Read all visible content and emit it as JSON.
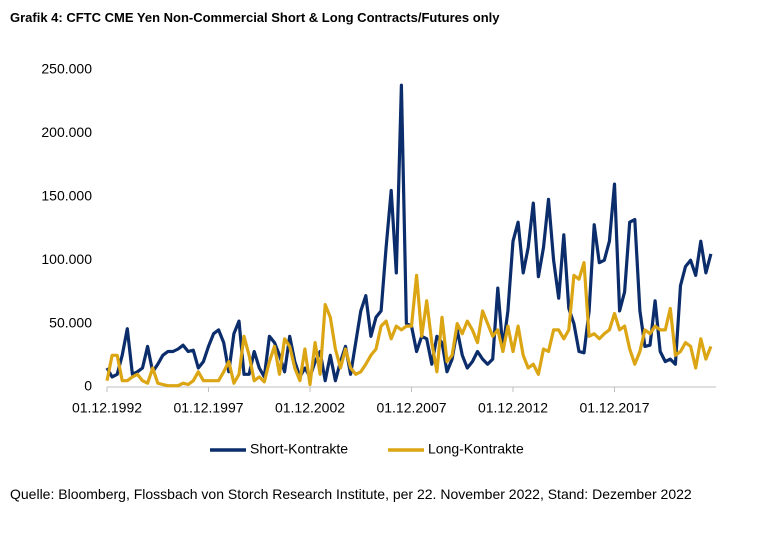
{
  "chart_data": {
    "type": "line",
    "title": "Grafik 4: CFTC CME Yen Non-Commercial Short & Long Contracts/Futures only",
    "source": "Quelle: Bloomberg, Flossbach von Storch Research Institute, per 22. November 2022, Stand: Dezember 2022",
    "x": [
      "01.12.1992",
      "01.03.1993",
      "01.06.1993",
      "01.09.1993",
      "01.12.1993",
      "01.03.1994",
      "01.06.1994",
      "01.09.1994",
      "01.12.1994",
      "01.03.1995",
      "01.06.1995",
      "01.09.1995",
      "01.12.1995",
      "01.03.1996",
      "01.06.1996",
      "01.09.1996",
      "01.12.1996",
      "01.03.1997",
      "01.06.1997",
      "01.09.1997",
      "01.12.1997",
      "01.03.1998",
      "01.06.1998",
      "01.09.1998",
      "01.12.1998",
      "01.03.1999",
      "01.06.1999",
      "01.09.1999",
      "01.12.1999",
      "01.03.2000",
      "01.06.2000",
      "01.09.2000",
      "01.12.2000",
      "01.03.2001",
      "01.06.2001",
      "01.09.2001",
      "01.12.2001",
      "01.03.2002",
      "01.06.2002",
      "01.09.2002",
      "01.12.2002",
      "01.03.2003",
      "01.06.2003",
      "01.09.2003",
      "01.12.2003",
      "01.03.2004",
      "01.06.2004",
      "01.09.2004",
      "01.12.2004",
      "01.03.2005",
      "01.06.2005",
      "01.09.2005",
      "01.12.2005",
      "01.03.2006",
      "01.06.2006",
      "01.09.2006",
      "01.12.2006",
      "01.03.2007",
      "01.06.2007",
      "01.09.2007",
      "01.12.2007",
      "01.03.2008",
      "01.06.2008",
      "01.09.2008",
      "01.12.2008",
      "01.03.2009",
      "01.06.2009",
      "01.09.2009",
      "01.12.2009",
      "01.03.2010",
      "01.06.2010",
      "01.09.2010",
      "01.12.2010",
      "01.03.2011",
      "01.06.2011",
      "01.09.2011",
      "01.12.2011",
      "01.03.2012",
      "01.06.2012",
      "01.09.2012",
      "01.12.2012",
      "01.03.2013",
      "01.06.2013",
      "01.09.2013",
      "01.12.2013",
      "01.03.2014",
      "01.06.2014",
      "01.09.2014",
      "01.12.2014",
      "01.03.2015",
      "01.06.2015",
      "01.09.2015",
      "01.12.2015",
      "01.03.2016",
      "01.06.2016",
      "01.09.2016",
      "01.12.2016",
      "01.03.2017",
      "01.06.2017",
      "01.09.2017",
      "01.12.2017",
      "01.03.2018",
      "01.06.2018",
      "01.09.2018",
      "01.12.2018",
      "01.03.2019",
      "01.06.2019",
      "01.09.2019",
      "01.12.2019",
      "01.03.2020",
      "01.06.2020",
      "01.09.2020",
      "01.12.2020",
      "01.03.2021",
      "01.06.2021",
      "01.09.2021",
      "01.12.2021",
      "01.03.2022",
      "01.06.2022",
      "01.09.2022"
    ],
    "series": [
      {
        "name": "Short-Kontrakte",
        "color": "#0c2d6b",
        "values": [
          15000,
          8000,
          10000,
          25000,
          46000,
          10000,
          12000,
          15000,
          32000,
          12000,
          18000,
          25000,
          28000,
          28000,
          30000,
          33000,
          28000,
          29000,
          15000,
          20000,
          32000,
          42000,
          45000,
          35000,
          12000,
          42000,
          52000,
          10000,
          10000,
          28000,
          15000,
          8000,
          40000,
          35000,
          25000,
          12000,
          40000,
          20000,
          8000,
          15000,
          8000,
          20000,
          28000,
          5000,
          25000,
          5000,
          20000,
          32000,
          10000,
          35000,
          60000,
          72000,
          40000,
          55000,
          60000,
          110000,
          155000,
          90000,
          238000,
          50000,
          48000,
          28000,
          40000,
          38000,
          18000,
          40000,
          35000,
          12000,
          22000,
          45000,
          25000,
          15000,
          20000,
          28000,
          22000,
          18000,
          22000,
          78000,
          30000,
          60000,
          115000,
          130000,
          90000,
          110000,
          145000,
          87000,
          110000,
          148000,
          100000,
          70000,
          120000,
          62000,
          50000,
          28000,
          27000,
          60000,
          128000,
          98000,
          100000,
          115000,
          160000,
          60000,
          75000,
          130000,
          132000,
          60000,
          32000,
          33000,
          68000,
          28000,
          20000,
          22000,
          18000,
          80000,
          95000,
          100000,
          88000,
          115000,
          90000,
          105000
        ]
      },
      {
        "name": "Long-Kontrakte",
        "color": "#dba514",
        "values": [
          5000,
          25000,
          25000,
          5000,
          5000,
          8000,
          10000,
          5000,
          3000,
          15000,
          3000,
          2000,
          1000,
          1000,
          1000,
          3000,
          2000,
          5000,
          12000,
          5000,
          5000,
          5000,
          5000,
          12000,
          20000,
          3000,
          10000,
          40000,
          25000,
          5000,
          8000,
          4000,
          20000,
          32000,
          10000,
          38000,
          32000,
          15000,
          5000,
          30000,
          2000,
          35000,
          10000,
          65000,
          55000,
          30000,
          15000,
          30000,
          15000,
          10000,
          12000,
          18000,
          25000,
          30000,
          48000,
          52000,
          38000,
          48000,
          45000,
          48000,
          48000,
          88000,
          40000,
          68000,
          35000,
          12000,
          55000,
          20000,
          25000,
          50000,
          42000,
          52000,
          45000,
          35000,
          60000,
          50000,
          40000,
          45000,
          28000,
          48000,
          28000,
          48000,
          25000,
          15000,
          18000,
          10000,
          30000,
          28000,
          45000,
          45000,
          38000,
          45000,
          88000,
          85000,
          98000,
          40000,
          42000,
          38000,
          42000,
          45000,
          58000,
          45000,
          48000,
          30000,
          18000,
          28000,
          45000,
          42000,
          48000,
          45000,
          45000,
          62000,
          25000,
          28000,
          35000,
          32000,
          15000,
          38000,
          22000,
          32000
        ]
      }
    ],
    "xlim": [
      "01.12.1992",
      "01.12.2022"
    ],
    "xticks": [
      "01.12.1992",
      "01.12.1997",
      "01.12.2002",
      "01.12.2007",
      "01.12.2012",
      "01.12.2017"
    ],
    "ylim": [
      0,
      250000
    ],
    "yticks": [
      0,
      {
        "value": 50000,
        "label": "50.000"
      },
      {
        "value": 100000,
        "label": "100.000"
      },
      {
        "value": 150000,
        "label": "150.000"
      },
      {
        "value": 200000,
        "label": "200.000"
      },
      {
        "value": 250000,
        "label": "250.000"
      }
    ],
    "grid": false,
    "legend": "bottom"
  }
}
